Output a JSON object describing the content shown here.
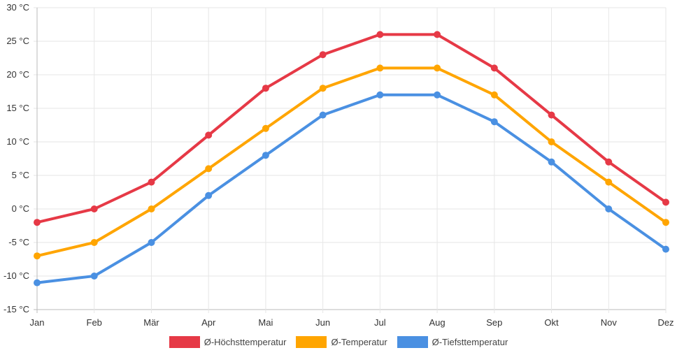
{
  "chart_data": {
    "type": "line",
    "categories": [
      "Jan",
      "Feb",
      "Mär",
      "Apr",
      "Mai",
      "Jun",
      "Jul",
      "Aug",
      "Sep",
      "Okt",
      "Nov",
      "Dez"
    ],
    "ylim": [
      -15,
      30
    ],
    "ytick_step": 5,
    "ytick_labels": [
      "30 °C",
      "25 °C",
      "20 °C",
      "15 °C",
      "10 °C",
      "5 °C",
      "0 °C",
      "-5 °C",
      "-10 °C",
      "-15 °C"
    ],
    "ytick_values": [
      30,
      25,
      20,
      15,
      10,
      5,
      0,
      -5,
      -10,
      -15
    ],
    "grid": true,
    "legend_position": "bottom",
    "series": [
      {
        "name": "Ø-Höchsttemperatur",
        "color": "#e63946",
        "values": [
          -2,
          0,
          4,
          11,
          18,
          23,
          26,
          26,
          21,
          14,
          7,
          1
        ]
      },
      {
        "name": "Ø-Temperatur",
        "color": "#ffa500",
        "values": [
          -7,
          -5,
          0,
          6,
          12,
          18,
          21,
          21,
          17,
          10,
          4,
          -2
        ]
      },
      {
        "name": "Ø-Tiefsttemperatur",
        "color": "#4a90e2",
        "values": [
          -11,
          -10,
          -5,
          2,
          8,
          14,
          17,
          17,
          13,
          7,
          0,
          -6
        ]
      }
    ]
  }
}
